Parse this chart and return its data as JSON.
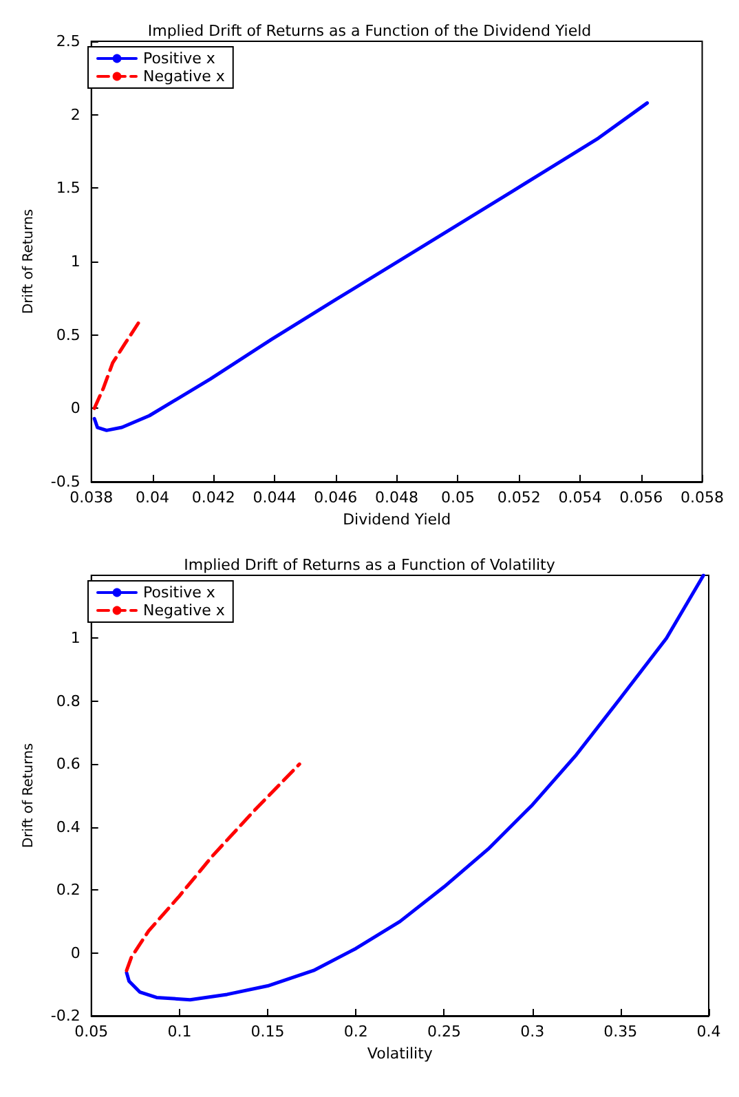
{
  "chart_data": [
    {
      "type": "line",
      "title": "Implied Drift of Returns as a Function of the Dividend Yield",
      "xlabel": "Dividend Yield",
      "ylabel": "Drift of Returns",
      "xlim": [
        0.038,
        0.058
      ],
      "xticks": [
        0.038,
        0.04,
        0.042,
        0.044,
        0.046,
        0.048,
        0.05,
        0.052,
        0.054,
        0.056,
        0.058
      ],
      "ylim": [
        -0.5,
        2.5
      ],
      "yticks": [
        -0.5,
        0,
        0.5,
        1,
        1.5,
        2,
        2.5
      ],
      "grid": false,
      "legend": "top left",
      "marker": "none",
      "series": [
        {
          "name": "Positive x",
          "color": "#0000ff",
          "line_style": "solid",
          "x": [
            0.0381,
            0.0382,
            0.0385,
            0.039,
            0.0399,
            0.0407,
            0.0419,
            0.0439,
            0.046,
            0.0489,
            0.0518,
            0.0546,
            0.0562
          ],
          "values": [
            -0.07,
            -0.13,
            -0.15,
            -0.13,
            -0.05,
            0.05,
            0.2,
            0.47,
            0.74,
            1.11,
            1.48,
            1.84,
            2.08
          ]
        },
        {
          "name": "Negative x",
          "color": "#ff0000",
          "line_style": "dashed",
          "x": [
            0.0381,
            0.0384,
            0.0387,
            0.0391,
            0.0396
          ],
          "values": [
            0,
            0.14,
            0.31,
            0.44,
            0.6
          ]
        }
      ]
    },
    {
      "type": "line",
      "title": "Implied Drift of Returns as a Function of Volatility",
      "xlabel": "Volatility",
      "ylabel": "Drift of Returns",
      "xlim": [
        0.05,
        0.4
      ],
      "xticks": [
        0.05,
        0.1,
        0.15,
        0.2,
        0.25,
        0.3,
        0.35,
        0.4
      ],
      "ylim": [
        -0.2,
        1.2
      ],
      "yticks": [
        -0.2,
        0,
        0.2,
        0.4,
        0.6,
        0.8,
        1
      ],
      "grid": false,
      "legend": "top left",
      "marker": "none",
      "series": [
        {
          "name": "Positive x",
          "color": "#0000ff",
          "line_style": "solid",
          "x": [
            0.07,
            0.0714,
            0.0776,
            0.087,
            0.106,
            0.127,
            0.15,
            0.176,
            0.2,
            0.225,
            0.25,
            0.275,
            0.3,
            0.325,
            0.35,
            0.376,
            0.397
          ],
          "values": [
            -0.063,
            -0.09,
            -0.125,
            -0.142,
            -0.149,
            -0.132,
            -0.105,
            -0.056,
            0.014,
            0.1,
            0.21,
            0.33,
            0.47,
            0.63,
            0.81,
            1.0,
            1.2
          ]
        },
        {
          "name": "Negative x",
          "color": "#ff0000",
          "line_style": "dashed",
          "x": [
            0.07,
            0.0727,
            0.0825,
            0.0998,
            0.119,
            0.142,
            0.168
          ],
          "values": [
            -0.056,
            -0.014,
            0.07,
            0.18,
            0.31,
            0.45,
            0.6
          ]
        }
      ]
    }
  ]
}
